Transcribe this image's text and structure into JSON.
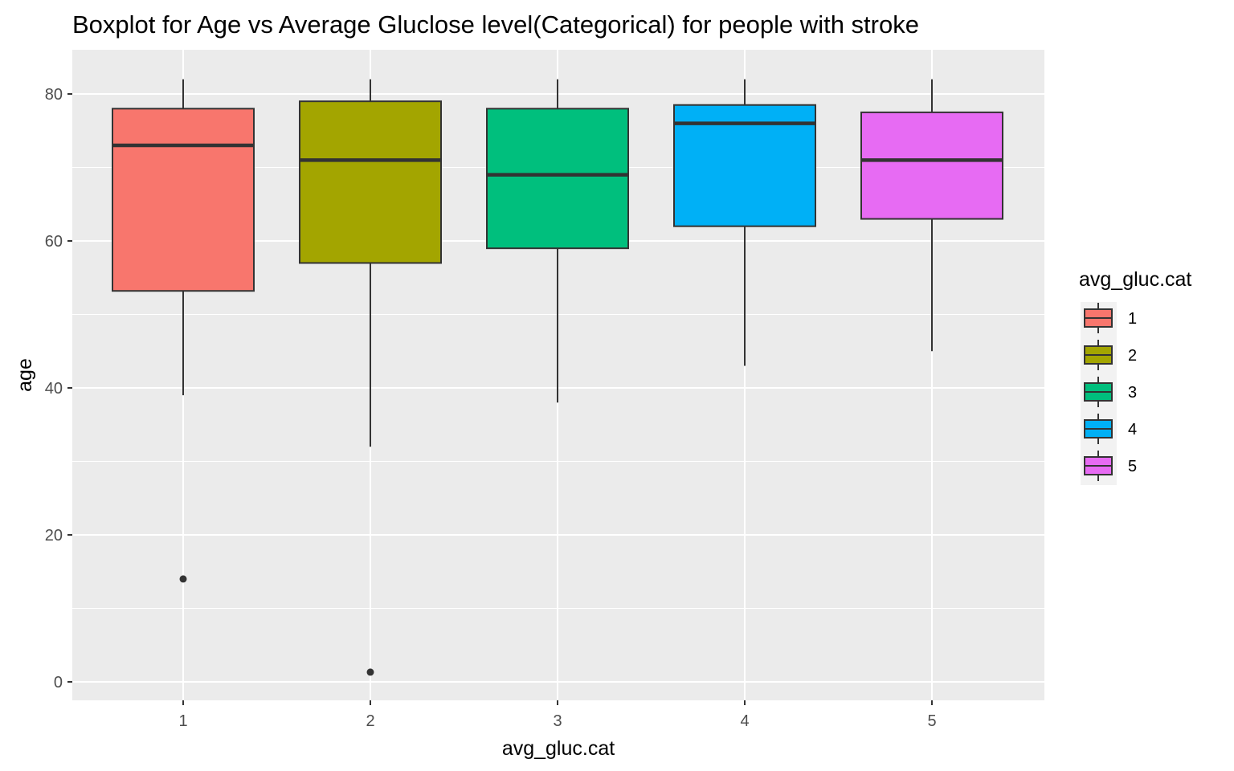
{
  "chart_data": {
    "type": "boxplot",
    "title": "Boxplot for Age vs Average Gluclose level(Categorical) for people with stroke",
    "xlabel": "avg_gluc.cat",
    "ylabel": "age",
    "categories": [
      "1",
      "2",
      "3",
      "4",
      "5"
    ],
    "y_ticks": [
      0,
      20,
      40,
      60,
      80
    ],
    "ylim": [
      -2.5,
      86
    ],
    "grid": true,
    "legend": {
      "title": "avg_gluc.cat",
      "position": "right",
      "entries": [
        "1",
        "2",
        "3",
        "4",
        "5"
      ]
    },
    "colors": [
      "#F8766D",
      "#A3A500",
      "#00BF7D",
      "#00B0F6",
      "#E76BF3"
    ],
    "series": [
      {
        "category": "1",
        "whisker_low": 39,
        "q1": 53.2,
        "median": 73,
        "q3": 78,
        "whisker_high": 82,
        "outliers": [
          14
        ]
      },
      {
        "category": "2",
        "whisker_low": 32,
        "q1": 57,
        "median": 71,
        "q3": 79,
        "whisker_high": 82,
        "outliers": [
          1.32
        ]
      },
      {
        "category": "3",
        "whisker_low": 38,
        "q1": 59,
        "median": 69,
        "q3": 78,
        "whisker_high": 82,
        "outliers": []
      },
      {
        "category": "4",
        "whisker_low": 43,
        "q1": 62,
        "median": 76,
        "q3": 78.5,
        "whisker_high": 82,
        "outliers": []
      },
      {
        "category": "5",
        "whisker_low": 45,
        "q1": 63,
        "median": 71,
        "q3": 77.5,
        "whisker_high": 82,
        "outliers": []
      }
    ]
  }
}
